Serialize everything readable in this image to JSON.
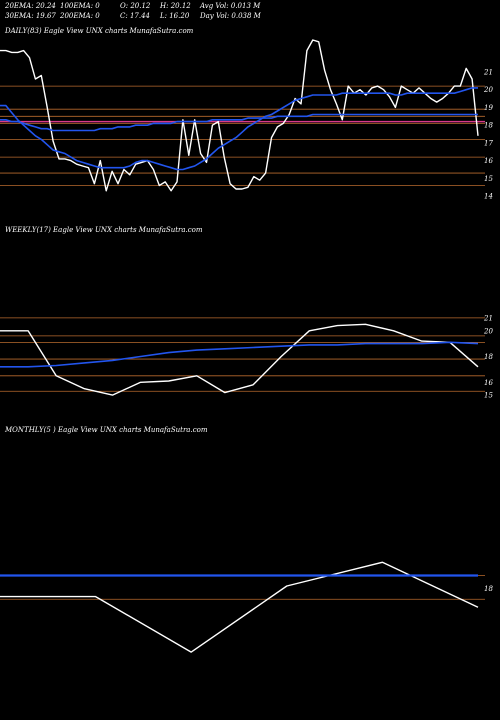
{
  "header": {
    "ema20": "20EMA: 20.24",
    "ema100": "100EMA: 0",
    "open": "O: 20.12",
    "high": "H: 20.12",
    "avgvol": "Avg Vol: 0.013 M",
    "ema30": "30EMA: 19.67",
    "ema200": "200EMA: 0",
    "close": "C: 17.44",
    "low": "L: 16.20",
    "dayvol": "Day Vol: 0.038 M"
  },
  "colors": {
    "background": "#000000",
    "price": "#ffffff",
    "ema": "#2255ee",
    "level": "#b86a2e",
    "ema_short": "#d93a8a"
  },
  "chart_data": [
    {
      "type": "line",
      "title": "DAILY(83) Eagle  View  UNX  charts MunafaSutra.com",
      "y_ticks": [
        21,
        20,
        19,
        18,
        17,
        16,
        15,
        14
      ],
      "ylim": [
        13.5,
        22.8
      ],
      "levels": [
        20.2,
        18.9,
        18.5,
        18.1,
        17.2,
        16.2,
        15.3,
        14.6
      ],
      "pink_level": 18.2,
      "series": [
        {
          "role": "price",
          "values": [
            22.2,
            22.2,
            22.1,
            22.1,
            22.2,
            21.8,
            20.6,
            20.8,
            19.0,
            17.1,
            16.1,
            16.1,
            16.0,
            15.8,
            15.7,
            15.6,
            14.7,
            16.0,
            14.3,
            15.4,
            14.7,
            15.5,
            15.2,
            15.8,
            15.9,
            16.0,
            15.5,
            14.6,
            14.8,
            14.3,
            14.8,
            18.3,
            16.3,
            18.3,
            16.4,
            15.9,
            18.0,
            18.2,
            16.2,
            14.7,
            14.4,
            14.4,
            14.5,
            15.1,
            14.9,
            15.3,
            17.3,
            17.9,
            18.1,
            18.6,
            19.5,
            19.2,
            22.2,
            22.8,
            22.7,
            21.1,
            20.0,
            19.2,
            18.3,
            20.2,
            19.8,
            20.0,
            19.7,
            20.1,
            20.2,
            20.0,
            19.6,
            19.0,
            20.2,
            20.0,
            19.8,
            20.1,
            19.8,
            19.5,
            19.3,
            19.5,
            19.8,
            20.2,
            20.2,
            21.2,
            20.6,
            17.4
          ]
        },
        {
          "role": "ema",
          "values": [
            19.1,
            19.1,
            18.7,
            18.3,
            18.0,
            17.7,
            17.4,
            17.2,
            16.9,
            16.6,
            16.5,
            16.4,
            16.2,
            16.0,
            15.9,
            15.8,
            15.7,
            15.6,
            15.6,
            15.6,
            15.6,
            15.6,
            15.7,
            15.9,
            16.0,
            16.0,
            15.9,
            15.8,
            15.7,
            15.6,
            15.5,
            15.5,
            15.6,
            15.7,
            15.9,
            16.1,
            16.4,
            16.7,
            16.9,
            17.1,
            17.3,
            17.6,
            17.9,
            18.1,
            18.3,
            18.5,
            18.6,
            18.8,
            19.0,
            19.2,
            19.4,
            19.5,
            19.6,
            19.7,
            19.7,
            19.7,
            19.7,
            19.7,
            19.8,
            19.8,
            19.8,
            19.8,
            19.8,
            19.8,
            19.8,
            19.8,
            19.8,
            19.7,
            19.7,
            19.8,
            19.8,
            19.8,
            19.8,
            19.8,
            19.8,
            19.8,
            19.8,
            19.8,
            19.9,
            20.0,
            20.1,
            20.1
          ]
        },
        {
          "role": "ema",
          "values": [
            18.3,
            18.3,
            18.2,
            18.2,
            18.1,
            18.0,
            17.9,
            17.8,
            17.8,
            17.7,
            17.7,
            17.7,
            17.7,
            17.7,
            17.7,
            17.7,
            17.7,
            17.8,
            17.8,
            17.8,
            17.9,
            17.9,
            17.9,
            18.0,
            18.0,
            18.0,
            18.1,
            18.1,
            18.1,
            18.1,
            18.2,
            18.2,
            18.2,
            18.2,
            18.2,
            18.2,
            18.3,
            18.3,
            18.3,
            18.3,
            18.3,
            18.3,
            18.4,
            18.4,
            18.4,
            18.4,
            18.4,
            18.5,
            18.5,
            18.5,
            18.5,
            18.5,
            18.5,
            18.6,
            18.6,
            18.6,
            18.6,
            18.6,
            18.6,
            18.6,
            18.6,
            18.6,
            18.6,
            18.6,
            18.6,
            18.6,
            18.6,
            18.6,
            18.6,
            18.6,
            18.6,
            18.6,
            18.6,
            18.6,
            18.6,
            18.6,
            18.6,
            18.6,
            18.6,
            18.6,
            18.6,
            18.6
          ]
        },
        {
          "role": "ema_short",
          "values": [
            18.2,
            18.2,
            18.2,
            18.2,
            18.2,
            18.2,
            18.2,
            18.2,
            18.2,
            18.2,
            18.2,
            18.2,
            18.2,
            18.2,
            18.2,
            18.2,
            18.2,
            18.2,
            18.2,
            18.2,
            18.2,
            18.2,
            18.2,
            18.2,
            18.2,
            18.2,
            18.2,
            18.2,
            18.2,
            18.2,
            18.2,
            18.2,
            18.2,
            18.2,
            18.2,
            18.2,
            18.2,
            18.2,
            18.2,
            18.2,
            18.2,
            18.2,
            18.2,
            18.2,
            18.2,
            18.2,
            18.2,
            18.2,
            18.2,
            18.2,
            18.2,
            18.2,
            18.2,
            18.2,
            18.2,
            18.2,
            18.2,
            18.2,
            18.2,
            18.2,
            18.2,
            18.2,
            18.2,
            18.2,
            18.2,
            18.2,
            18.2,
            18.2,
            18.2,
            18.2,
            18.2,
            18.2,
            18.2,
            18.2,
            18.2,
            18.2,
            18.2,
            18.2,
            18.2,
            18.2,
            18.2,
            18.2
          ]
        }
      ]
    },
    {
      "type": "line",
      "title": "WEEKLY(17) Eagle  View  UNX  charts MunafaSutra.com",
      "y_ticks": [
        21,
        20,
        18,
        16,
        15
      ],
      "ylim": [
        14,
        22
      ],
      "levels": [
        21.0,
        19.6,
        19.1,
        17.8,
        16.5,
        15.3
      ],
      "series": [
        {
          "role": "price",
          "values": [
            20.0,
            20.0,
            16.5,
            15.5,
            15.0,
            16.0,
            16.1,
            16.5,
            15.2,
            15.8,
            18.0,
            20.0,
            20.4,
            20.5,
            20.0,
            19.2,
            19.1,
            17.2
          ]
        },
        {
          "role": "ema",
          "values": [
            17.2,
            17.2,
            17.3,
            17.5,
            17.7,
            18.0,
            18.3,
            18.5,
            18.6,
            18.7,
            18.8,
            18.9,
            18.9,
            19.0,
            19.0,
            19.0,
            19.1,
            19.0
          ]
        }
      ]
    },
    {
      "type": "line",
      "title": "MONTHLY(5            ) Eagle  View  UNX  charts MunafaSutra.com",
      "y_ticks": [
        18
      ],
      "ylim": [
        15.3,
        20.6
      ],
      "levels": [
        18.5,
        17.6
      ],
      "series": [
        {
          "role": "price",
          "values": [
            17.7,
            17.7,
            15.6,
            18.1,
            19.0,
            17.3
          ]
        },
        {
          "role": "ema",
          "values": [
            18.5,
            18.5,
            18.5,
            18.5,
            18.5,
            18.5
          ]
        }
      ]
    }
  ]
}
